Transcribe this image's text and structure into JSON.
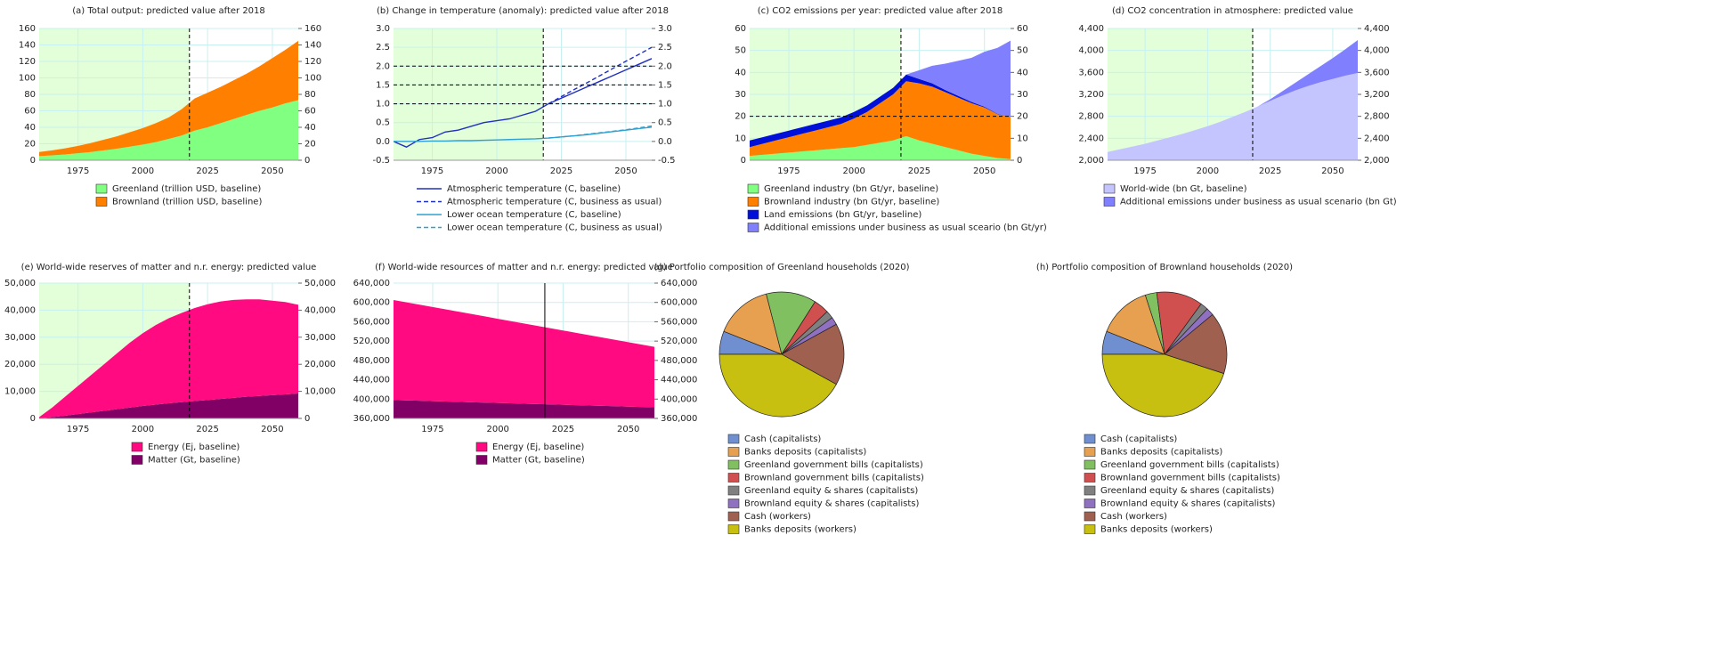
{
  "chart_data": [
    {
      "type": "area",
      "title": "(a) Total output: predicted value after 2018",
      "x": [
        1960,
        1965,
        1970,
        1975,
        1980,
        1985,
        1990,
        1995,
        2000,
        2005,
        2010,
        2015,
        2020,
        2025,
        2030,
        2035,
        2040,
        2045,
        2050,
        2055,
        2060
      ],
      "xlim": [
        1960,
        2060
      ],
      "xticks": [
        1975,
        2000,
        2025,
        2050
      ],
      "ylim": [
        0,
        160
      ],
      "yticks": [
        0,
        20,
        40,
        60,
        80,
        100,
        120,
        140,
        160
      ],
      "y2lim": [
        0,
        160
      ],
      "y2ticks": [
        0,
        20,
        40,
        60,
        80,
        100,
        120,
        140,
        160
      ],
      "grid": true,
      "marker_x": 2018,
      "marker_dashed": true,
      "shade_color": "#e2ffd9",
      "series": [
        {
          "name": "Greenland (trillion USD, baseline)",
          "color": "#80ff80",
          "values": [
            5,
            6,
            7,
            8.5,
            10,
            12,
            14,
            16.5,
            19,
            22,
            26,
            30,
            36,
            40,
            45,
            50,
            55,
            60,
            64,
            69,
            73
          ]
        },
        {
          "name": "Brownland (trillion USD, baseline)",
          "color": "#ff8000",
          "values": [
            5,
            6,
            7.5,
            9,
            11,
            13,
            15,
            17.5,
            20,
            23,
            26,
            32,
            39,
            42,
            44,
            47,
            50,
            54,
            60,
            65,
            72
          ]
        }
      ]
    },
    {
      "type": "line",
      "title": "(b) Change in temperature (anomaly): predicted value after 2018",
      "x": [
        1960,
        1965,
        1970,
        1975,
        1980,
        1985,
        1990,
        1995,
        2000,
        2005,
        2010,
        2015,
        2020,
        2025,
        2030,
        2035,
        2040,
        2045,
        2050,
        2055,
        2060
      ],
      "xlim": [
        1960,
        2060
      ],
      "xticks": [
        1975,
        2000,
        2025,
        2050
      ],
      "ylim": [
        -0.5,
        3
      ],
      "yticks": [
        -0.5,
        {
          "value": 0,
          "label": "0.0"
        },
        0.5,
        {
          "value": 1,
          "label": "1.0"
        },
        1.5,
        {
          "value": 2,
          "label": "2.0"
        },
        2.5,
        {
          "value": 3,
          "label": "3.0"
        }
      ],
      "y2lim": [
        -0.5,
        3
      ],
      "y2ticks": [
        -0.5,
        {
          "value": 0,
          "label": "0.0"
        },
        0.5,
        {
          "value": 1,
          "label": "1.0"
        },
        1.5,
        {
          "value": 2,
          "label": "2.0"
        },
        2.5,
        {
          "value": 3,
          "label": "3.0"
        }
      ],
      "grid": true,
      "marker_x": 2018,
      "marker_dashed": true,
      "shade_color": "#e2ffd9",
      "hlines": [
        1,
        1.5,
        2
      ],
      "series": [
        {
          "name": "Atmospheric temperature (C, baseline)",
          "color": "#2030c0",
          "dashed": false,
          "values": [
            0,
            -0.15,
            0.05,
            0.1,
            0.25,
            0.3,
            0.4,
            0.5,
            0.55,
            0.6,
            0.7,
            0.8,
            1,
            1.15,
            1.3,
            1.45,
            1.6,
            1.75,
            1.9,
            2.05,
            2.2
          ]
        },
        {
          "name": "Atmospheric temperature (C, business as usual)",
          "color": "#2030c0",
          "dashed": true,
          "values": [
            null,
            null,
            null,
            null,
            null,
            null,
            null,
            null,
            null,
            null,
            null,
            null,
            1,
            1.19,
            1.38,
            1.56,
            1.75,
            1.94,
            2.13,
            2.31,
            2.5
          ]
        },
        {
          "name": "Lower ocean temperature (C, baseline)",
          "color": "#30a0d0",
          "dashed": false,
          "values": [
            0,
            0,
            0,
            0.01,
            0.01,
            0.02,
            0.02,
            0.03,
            0.04,
            0.05,
            0.06,
            0.07,
            0.09,
            0.12,
            0.15,
            0.18,
            0.22,
            0.26,
            0.3,
            0.34,
            0.38
          ]
        },
        {
          "name": "Lower ocean temperature (C, business as usual)",
          "color": "#30a0d0",
          "dashed": true,
          "values": [
            null,
            null,
            null,
            null,
            null,
            null,
            null,
            null,
            null,
            null,
            null,
            null,
            0.09,
            0.12,
            0.15,
            0.19,
            0.23,
            0.27,
            0.31,
            0.36,
            0.41
          ]
        }
      ]
    },
    {
      "type": "area",
      "title": "(c) CO2 emissions per year: predicted value after 2018",
      "x": [
        1960,
        1965,
        1970,
        1975,
        1980,
        1985,
        1990,
        1995,
        2000,
        2005,
        2010,
        2015,
        2020,
        2025,
        2030,
        2035,
        2040,
        2045,
        2050,
        2055,
        2060
      ],
      "xlim": [
        1960,
        2060
      ],
      "xticks": [
        1975,
        2000,
        2025,
        2050
      ],
      "ylim": [
        0,
        60
      ],
      "yticks": [
        0,
        10,
        20,
        30,
        40,
        50,
        60
      ],
      "y2lim": [
        0,
        60
      ],
      "y2ticks": [
        0,
        10,
        20,
        30,
        40,
        50,
        60
      ],
      "grid": true,
      "marker_x": 2018,
      "marker_dashed": true,
      "shade_color": "#e2ffd9",
      "hlines": [
        20
      ],
      "series": [
        {
          "name": "Greenland industry (bn Gt/yr, baseline)",
          "color": "#80ff80",
          "values": [
            2,
            2.5,
            3,
            3.5,
            4,
            4.5,
            5,
            5.5,
            6,
            7,
            8,
            9,
            11,
            9,
            7.5,
            6,
            4.5,
            3,
            2,
            1,
            0.5
          ]
        },
        {
          "name": "Brownland industry (bn Gt/yr, baseline)",
          "color": "#ff8000",
          "values": [
            4,
            5,
            6,
            7,
            8,
            9,
            10,
            11,
            13,
            15,
            18,
            21,
            25,
            26,
            26,
            25,
            24,
            23,
            22,
            20,
            19
          ]
        },
        {
          "name": "Land emissions (bn Gt/yr, baseline)",
          "color": "#0010d8",
          "values": [
            3,
            3,
            3,
            3,
            3,
            3,
            3,
            3,
            3,
            3,
            3,
            3,
            3,
            2,
            1.5,
            1,
            0.8,
            0.6,
            0.4,
            0.2,
            0
          ]
        },
        {
          "name": "Additional emissions under business as usual sceario (bn Gt/yr)",
          "color": "#8080ff",
          "values": [
            0,
            0,
            0,
            0,
            0,
            0,
            0,
            0,
            0,
            0,
            0,
            0,
            0,
            4,
            8,
            12,
            16,
            20,
            25,
            30,
            35
          ]
        }
      ]
    },
    {
      "type": "area",
      "title": "(d) CO2 concentration in atmosphere: predicted value",
      "x": [
        1960,
        1965,
        1970,
        1975,
        1980,
        1985,
        1990,
        1995,
        2000,
        2005,
        2010,
        2015,
        2020,
        2025,
        2030,
        2035,
        2040,
        2045,
        2050,
        2055,
        2060
      ],
      "xlim": [
        1960,
        2060
      ],
      "xticks": [
        1975,
        2000,
        2025,
        2050
      ],
      "ylim": [
        2000,
        4400
      ],
      "yticks": [
        {
          "value": 2000,
          "label": "2,000"
        },
        {
          "value": 2400,
          "label": "2,400"
        },
        {
          "value": 2800,
          "label": "2,800"
        },
        {
          "value": 3200,
          "label": "3,200"
        },
        {
          "value": 3600,
          "label": "3,600"
        },
        {
          "value": 4000,
          "label": "4,000"
        },
        {
          "value": 4400,
          "label": "4,400"
        }
      ],
      "y2lim": [
        2000,
        4400
      ],
      "y2ticks": [
        {
          "value": 2000,
          "label": "2,000"
        },
        {
          "value": 2400,
          "label": "2,400"
        },
        {
          "value": 2800,
          "label": "2,800"
        },
        {
          "value": 3200,
          "label": "3,200"
        },
        {
          "value": 3600,
          "label": "3,600"
        },
        {
          "value": 4000,
          "label": "4,000"
        },
        {
          "value": 4400,
          "label": "4,400"
        }
      ],
      "grid": true,
      "marker_x": 2018,
      "marker_dashed": true,
      "shade_color": "#e2ffd9",
      "series": [
        {
          "name": "World-wide (bn Gt, baseline)",
          "color": "#c4c4ff",
          "values": [
            2150,
            2200,
            2250,
            2300,
            2360,
            2420,
            2480,
            2550,
            2620,
            2700,
            2790,
            2880,
            2980,
            3080,
            3180,
            3270,
            3350,
            3420,
            3480,
            3540,
            3590
          ]
        },
        {
          "name": "Additional emissions under business as usual scenario (bn Gt)",
          "color": "#8080ff",
          "values": [
            0,
            0,
            0,
            0,
            0,
            0,
            0,
            0,
            0,
            0,
            0,
            0,
            0,
            30,
            80,
            140,
            210,
            290,
            380,
            480,
            600
          ]
        }
      ]
    },
    {
      "type": "area",
      "title": "(e) World-wide reserves of matter and n.r. energy: predicted value",
      "x": [
        1960,
        1965,
        1970,
        1975,
        1980,
        1985,
        1990,
        1995,
        2000,
        2005,
        2010,
        2015,
        2020,
        2025,
        2030,
        2035,
        2040,
        2045,
        2050,
        2055,
        2060
      ],
      "xlim": [
        1960,
        2060
      ],
      "xticks": [
        1975,
        2000,
        2025,
        2050
      ],
      "ylim": [
        0,
        50000
      ],
      "yticks": [
        0,
        {
          "value": 10000,
          "label": "10,000"
        },
        {
          "value": 20000,
          "label": "20,000"
        },
        {
          "value": 30000,
          "label": "30,000"
        },
        {
          "value": 40000,
          "label": "40,000"
        },
        {
          "value": 50000,
          "label": "50,000"
        }
      ],
      "y2lim": [
        0,
        50000
      ],
      "y2ticks": [
        0,
        {
          "value": 10000,
          "label": "10,000"
        },
        {
          "value": 20000,
          "label": "20,000"
        },
        {
          "value": 30000,
          "label": "30,000"
        },
        {
          "value": 40000,
          "label": "40,000"
        },
        {
          "value": 50000,
          "label": "50,000"
        }
      ],
      "grid": true,
      "marker_x": 2018,
      "marker_dashed": true,
      "shade_color": "#e2ffd9",
      "stack_bottom": "last",
      "series": [
        {
          "name": "Energy (Ej, baseline)",
          "color": "#ff0a80",
          "values": [
            500,
            3500,
            7000,
            10400,
            13800,
            17200,
            20600,
            24000,
            26900,
            29400,
            31400,
            33000,
            34400,
            35400,
            36000,
            36200,
            36000,
            35700,
            34900,
            34100,
            32800
          ]
        },
        {
          "name": "Matter (Gt, baseline)",
          "color": "#800066",
          "values": [
            0,
            500,
            1000,
            1600,
            2200,
            2800,
            3400,
            4000,
            4600,
            5100,
            5600,
            6000,
            6400,
            6800,
            7200,
            7600,
            8000,
            8300,
            8600,
            8900,
            9200
          ]
        }
      ]
    },
    {
      "type": "area",
      "title": "(f) World-wide resources of matter and n.r. energy: predicted value",
      "x": [
        1960,
        1965,
        1970,
        1975,
        1980,
        1985,
        1990,
        1995,
        2000,
        2005,
        2010,
        2015,
        2020,
        2025,
        2030,
        2035,
        2040,
        2045,
        2050,
        2055,
        2060
      ],
      "xlim": [
        1960,
        2060
      ],
      "xticks": [
        1975,
        2000,
        2025,
        2050
      ],
      "ylim": [
        360000,
        640000
      ],
      "yticks": [
        {
          "value": 360000,
          "label": "360,000"
        },
        {
          "value": 400000,
          "label": "400,000"
        },
        {
          "value": 440000,
          "label": "440,000"
        },
        {
          "value": 480000,
          "label": "480,000"
        },
        {
          "value": 520000,
          "label": "520,000"
        },
        {
          "value": 560000,
          "label": "560,000"
        },
        {
          "value": 600000,
          "label": "600,000"
        },
        {
          "value": 640000,
          "label": "640,000"
        }
      ],
      "y2lim": [
        360000,
        640000
      ],
      "y2ticks": [
        {
          "value": 360000,
          "label": "360,000"
        },
        {
          "value": 400000,
          "label": "400,000"
        },
        {
          "value": 440000,
          "label": "440,000"
        },
        {
          "value": 480000,
          "label": "480,000"
        },
        {
          "value": 520000,
          "label": "520,000"
        },
        {
          "value": 560000,
          "label": "560,000"
        },
        {
          "value": 600000,
          "label": "600,000"
        },
        {
          "value": 640000,
          "label": "640,000"
        }
      ],
      "grid": true,
      "marker_x": 2018,
      "marker_dashed": false,
      "stack_bottom": "last",
      "series": [
        {
          "name": "Energy (Ej, baseline)",
          "color": "#ff0a80",
          "values": [
            207000,
            202900,
            198800,
            194700,
            190600,
            186500,
            182400,
            178300,
            174200,
            170100,
            166000,
            161900,
            157800,
            153700,
            149600,
            145500,
            141400,
            137300,
            133200,
            129100,
            125000
          ]
        },
        {
          "name": "Matter (Gt, baseline)",
          "color": "#800066",
          "values": [
            398000,
            397250,
            396500,
            395750,
            395000,
            394250,
            393500,
            392750,
            392000,
            391250,
            390500,
            389750,
            389000,
            388250,
            387500,
            386750,
            386000,
            385250,
            384500,
            383750,
            383000
          ]
        }
      ]
    },
    {
      "type": "pie",
      "title": "(g) Portfolio composition of Greenland households (2020)",
      "categories": [
        "Cash (capitalists)",
        "Banks deposits (capitalists)",
        "Greenland government bills (capitalists)",
        "Brownland government bills (capitalists)",
        "Greenland equity & shares (capitalists)",
        "Brownland equity & shares (capitalists)",
        "Cash (workers)",
        "Banks deposits (workers)"
      ],
      "values": [
        6,
        15,
        13,
        4,
        2,
        2,
        16,
        42
      ],
      "colors": [
        "#6f8fd0",
        "#e6a050",
        "#80c060",
        "#d05050",
        "#808080",
        "#9070c0",
        "#a06050",
        "#c8c010"
      ]
    },
    {
      "type": "pie",
      "title": "(h) Portfolio composition of Brownland households (2020)",
      "categories": [
        "Cash (capitalists)",
        "Banks deposits (capitalists)",
        "Greenland government bills (capitalists)",
        "Brownland government bills (capitalists)",
        "Greenland equity & shares (capitalists)",
        "Brownland equity & shares (capitalists)",
        "Cash (workers)",
        "Banks deposits (workers)"
      ],
      "values": [
        6,
        14,
        3,
        12,
        2,
        2,
        16,
        45
      ],
      "colors": [
        "#6f8fd0",
        "#e6a050",
        "#80c060",
        "#d05050",
        "#808080",
        "#9070c0",
        "#a06050",
        "#c8c010"
      ]
    }
  ]
}
